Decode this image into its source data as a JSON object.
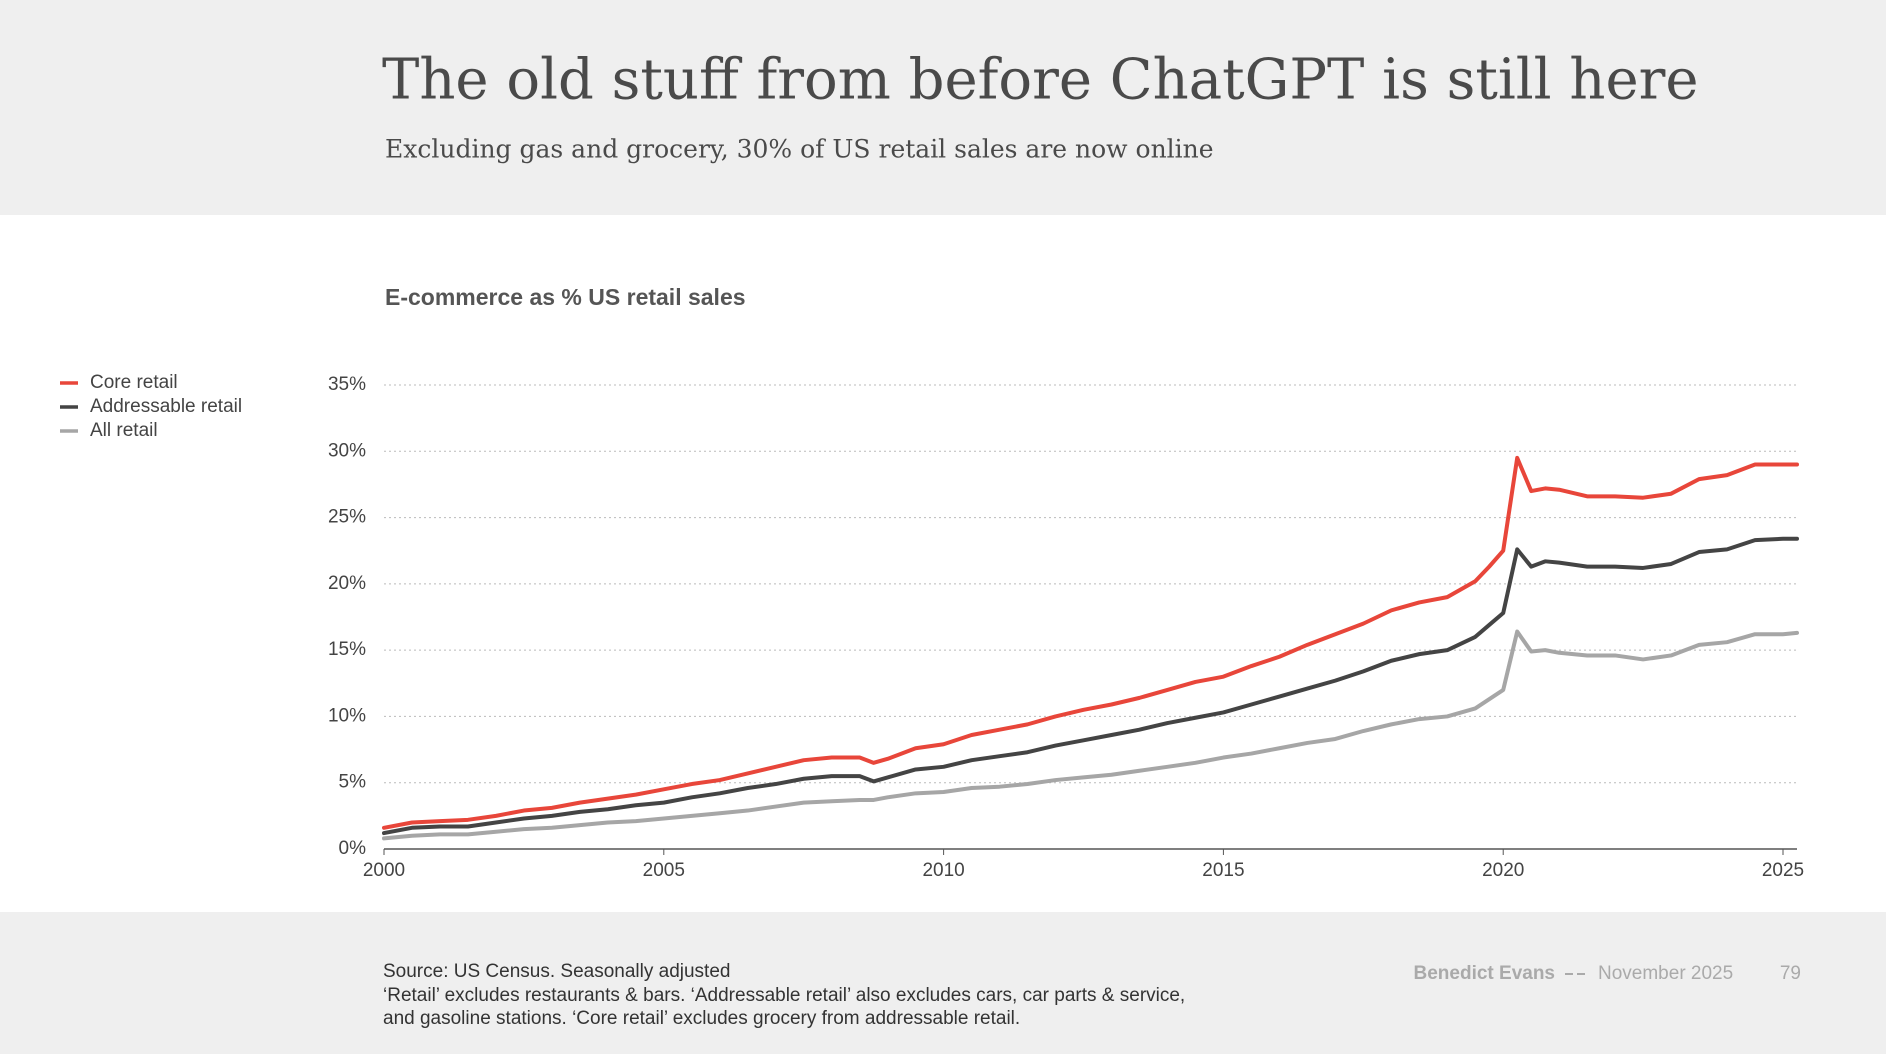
{
  "header": {
    "title": "The old stuff from before ChatGPT is still here",
    "subtitle": "Excluding gas and grocery, 30% of US retail sales are now online"
  },
  "chart_data": {
    "type": "line",
    "title": "E-commerce as % US retail sales",
    "x": [
      2000,
      2000.5,
      2001,
      2001.5,
      2002,
      2002.5,
      2003,
      2003.5,
      2004,
      2004.5,
      2005,
      2005.5,
      2006,
      2006.5,
      2007,
      2007.5,
      2008,
      2008.5,
      2008.75,
      2009,
      2009.5,
      2010,
      2010.5,
      2011,
      2011.5,
      2012,
      2012.5,
      2013,
      2013.5,
      2014,
      2014.5,
      2015,
      2015.5,
      2016,
      2016.5,
      2017,
      2017.5,
      2018,
      2018.5,
      2019,
      2019.5,
      2019.75,
      2020,
      2020.25,
      2020.5,
      2020.75,
      2021,
      2021.5,
      2022,
      2022.5,
      2023,
      2023.5,
      2024,
      2024.5,
      2025,
      2025.25
    ],
    "series": [
      {
        "name": "Core retail",
        "color": "#e8463a",
        "values": [
          1.6,
          2.0,
          2.1,
          2.2,
          2.5,
          2.9,
          3.1,
          3.5,
          3.8,
          4.1,
          4.5,
          4.9,
          5.2,
          5.7,
          6.2,
          6.7,
          6.9,
          6.9,
          6.5,
          6.8,
          7.6,
          7.9,
          8.6,
          9.0,
          9.4,
          10.0,
          10.5,
          10.9,
          11.4,
          12.0,
          12.6,
          13.0,
          13.8,
          14.5,
          15.4,
          16.2,
          17.0,
          18.0,
          18.6,
          19.0,
          20.2,
          21.3,
          22.5,
          29.5,
          27.0,
          27.2,
          27.1,
          26.6,
          26.6,
          26.5,
          26.8,
          27.9,
          28.2,
          29.0,
          29.0,
          29.0
        ]
      },
      {
        "name": "Addressable retail",
        "color": "#444444",
        "values": [
          1.2,
          1.6,
          1.7,
          1.7,
          2.0,
          2.3,
          2.5,
          2.8,
          3.0,
          3.3,
          3.5,
          3.9,
          4.2,
          4.6,
          4.9,
          5.3,
          5.5,
          5.5,
          5.1,
          5.4,
          6.0,
          6.2,
          6.7,
          7.0,
          7.3,
          7.8,
          8.2,
          8.6,
          9.0,
          9.5,
          9.9,
          10.3,
          10.9,
          11.5,
          12.1,
          12.7,
          13.4,
          14.2,
          14.7,
          15.0,
          16.0,
          16.9,
          17.8,
          22.6,
          21.3,
          21.7,
          21.6,
          21.3,
          21.3,
          21.2,
          21.5,
          22.4,
          22.6,
          23.3,
          23.4,
          23.4
        ]
      },
      {
        "name": "All retail",
        "color": "#a6a6a6",
        "values": [
          0.8,
          1.0,
          1.1,
          1.1,
          1.3,
          1.5,
          1.6,
          1.8,
          2.0,
          2.1,
          2.3,
          2.5,
          2.7,
          2.9,
          3.2,
          3.5,
          3.6,
          3.7,
          3.7,
          3.9,
          4.2,
          4.3,
          4.6,
          4.7,
          4.9,
          5.2,
          5.4,
          5.6,
          5.9,
          6.2,
          6.5,
          6.9,
          7.2,
          7.6,
          8.0,
          8.3,
          8.9,
          9.4,
          9.8,
          10.0,
          10.6,
          11.3,
          12.0,
          16.4,
          14.9,
          15.0,
          14.8,
          14.6,
          14.6,
          14.3,
          14.6,
          15.4,
          15.6,
          16.2,
          16.2,
          16.3
        ]
      }
    ],
    "xlim": [
      2000,
      2025.25
    ],
    "xticks": [
      2000,
      2005,
      2010,
      2015,
      2020,
      2025
    ],
    "ylim": [
      0,
      35
    ],
    "yticks": [
      {
        "value": 0,
        "label": "0%"
      },
      {
        "value": 5,
        "label": "5%"
      },
      {
        "value": 10,
        "label": "10%"
      },
      {
        "value": 15,
        "label": "15%"
      },
      {
        "value": 20,
        "label": "20%"
      },
      {
        "value": 25,
        "label": "25%"
      },
      {
        "value": 30,
        "label": "30%"
      },
      {
        "value": 35,
        "label": "35%"
      }
    ],
    "grid": true,
    "legend": "left"
  },
  "footer": {
    "source": [
      "Source: US Census. Seasonally adjusted",
      "‘Retail’ excludes restaurants & bars. ‘Addressable retail’ also excludes cars, car parts & service,",
      "and gasoline stations. ‘Core retail’ excludes grocery from addressable retail."
    ],
    "author": "Benedict Evans",
    "date": "November 2025",
    "page": "79"
  }
}
